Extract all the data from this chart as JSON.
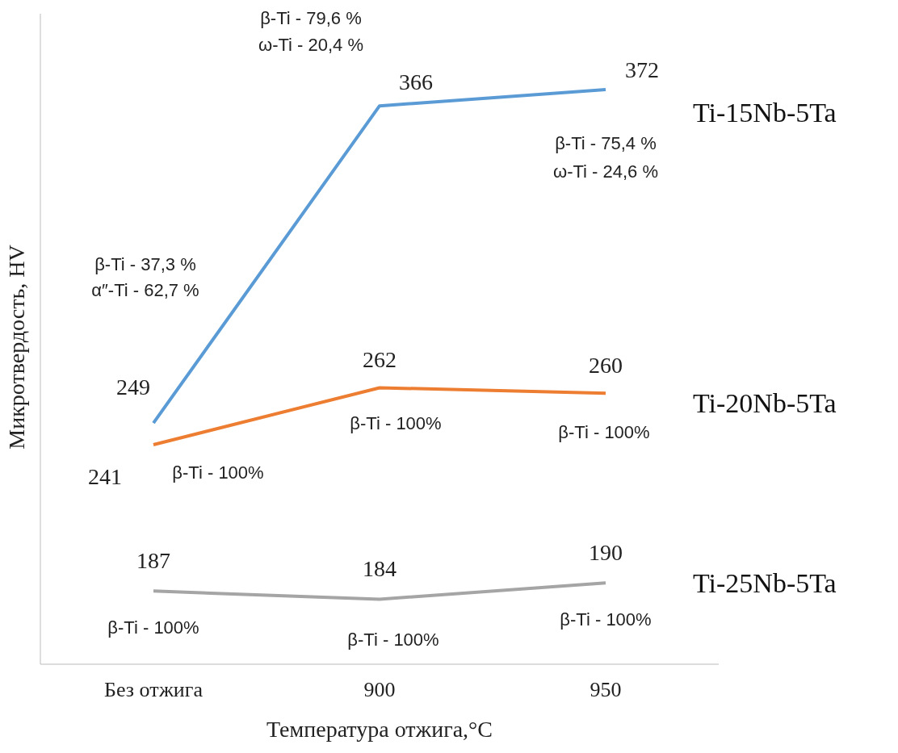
{
  "chart_data": {
    "type": "line",
    "xlabel": "Температура  отжига,°C",
    "ylabel": "Микротвердость, HV",
    "categories": [
      "Без отжига",
      "900",
      "950"
    ],
    "series": [
      {
        "name": "Ti-15Nb-5Ta",
        "color": "#5b9bd5",
        "values": [
          249,
          366,
          372
        ]
      },
      {
        "name": "Ti-20Nb-5Ta",
        "color": "#ed7d31",
        "values": [
          241,
          262,
          260
        ]
      },
      {
        "name": "Ti-25Nb-5Ta",
        "color": "#a5a5a5",
        "values": [
          187,
          184,
          190
        ]
      }
    ],
    "ylim": [
      160,
      400
    ],
    "tick_labels": "x",
    "data_labels": true,
    "line_style": "solid",
    "annotations": [
      "β-Ti - 79,6 %",
      "ω-Ti - 20,4 %",
      "β-Ti - 75,4 %",
      "ω-Ti - 24,6 %",
      "β-Ti - 37,3 %",
      "α″-Ti - 62,7 %",
      "β-Ti - 100%",
      "β-Ti - 100%",
      "β-Ti - 100%",
      "β-Ti - 100%",
      "β-Ti - 100%",
      "β-Ti - 100%"
    ]
  }
}
